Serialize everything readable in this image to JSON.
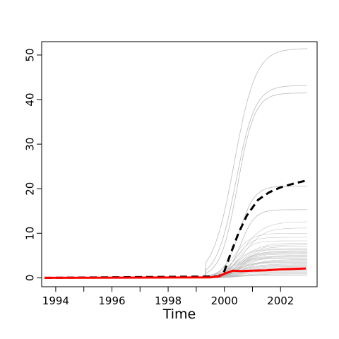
{
  "chart_data": {
    "type": "line",
    "title": "",
    "xlabel": "Time",
    "ylabel": "",
    "xlim": [
      1993.5,
      2003.3
    ],
    "ylim": [
      -2.0,
      53.0
    ],
    "x_ticks": [
      1994,
      1996,
      1998,
      2000,
      2002
    ],
    "x_minor_ticks": [
      1995,
      1997,
      1999,
      2001
    ],
    "y_ticks": [
      0,
      10,
      20,
      30,
      40,
      50
    ],
    "grid": false,
    "legend": "none",
    "background_series_color": "#b4b4b4",
    "background_series_final_values": [
      51.5,
      43.2,
      41.5,
      20.6,
      15.3,
      12.6,
      11.2,
      10.0,
      9.1,
      8.3,
      7.8,
      7.4,
      7.0,
      6.6,
      6.3,
      6.1,
      5.9,
      5.7,
      5.5,
      5.3,
      5.1,
      4.9,
      4.7,
      4.5,
      4.3,
      4.1,
      3.9,
      3.7,
      3.5,
      3.3,
      3.1,
      2.9,
      2.7,
      2.5,
      2.3,
      2.1,
      1.9,
      1.7,
      1.5,
      1.3,
      1.1,
      0.9,
      0.7,
      0.5
    ],
    "series": [
      {
        "color": "#000000",
        "style": "dashed",
        "x": [
          1993.6,
          1999.8,
          2000.0,
          2000.2,
          2000.5,
          2000.8,
          2001.2,
          2001.6,
          2002.0,
          2002.5,
          2002.9
        ],
        "values": [
          0,
          0.3,
          1.5,
          5.0,
          10.0,
          14.0,
          17.5,
          19.2,
          20.3,
          21.2,
          21.8
        ]
      },
      {
        "color": "#ff0000",
        "style": "solid",
        "x": [
          1993.6,
          1999.5,
          1999.8,
          2000.0,
          2000.3,
          2000.6,
          2001.0,
          2001.5,
          2002.0,
          2002.5,
          2002.9
        ],
        "values": [
          0,
          0.1,
          0.3,
          0.9,
          1.6,
          1.5,
          1.6,
          1.7,
          1.9,
          2.0,
          2.1
        ]
      }
    ]
  }
}
